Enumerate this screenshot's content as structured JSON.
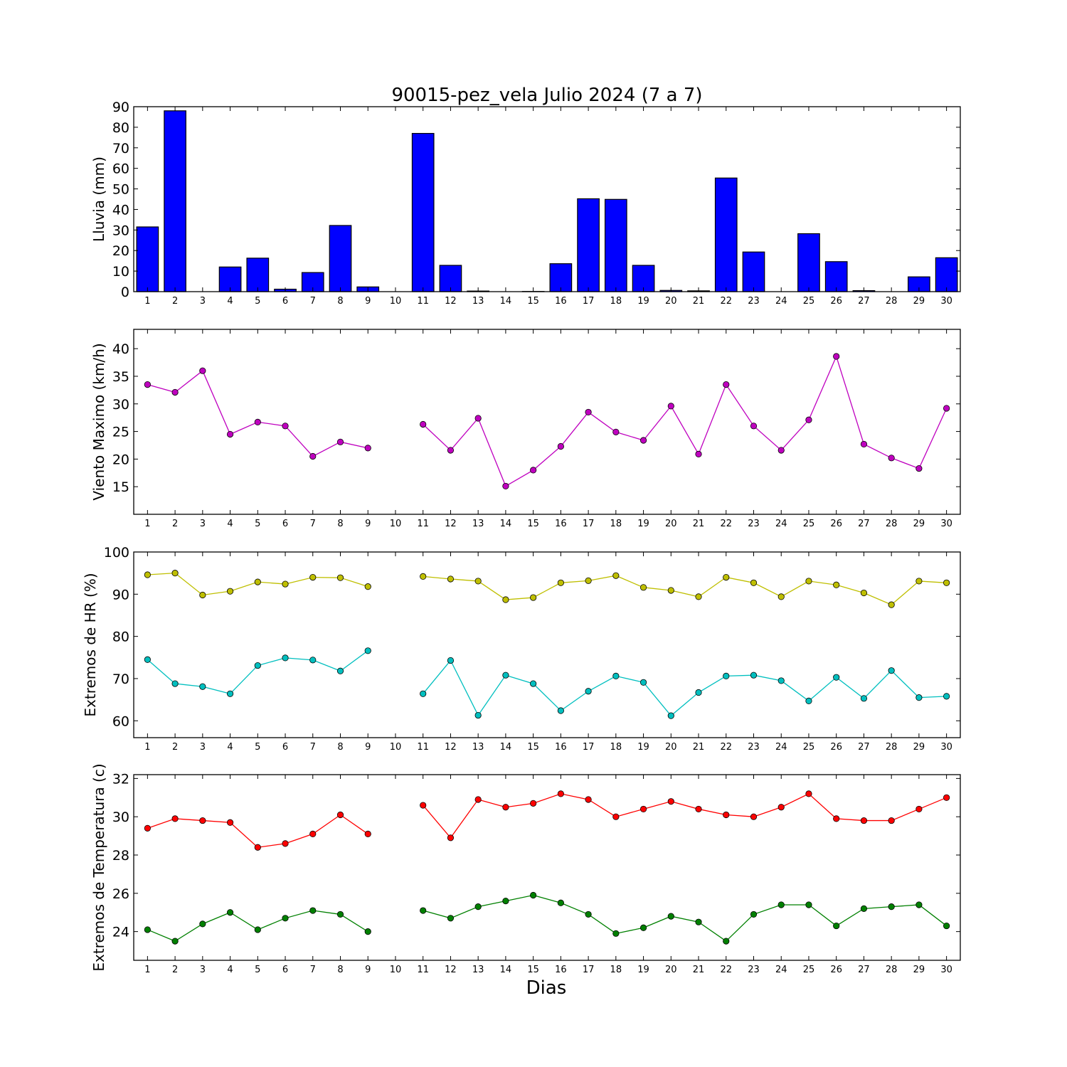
{
  "title": "90015-pez_vela Julio 2024  (7 a 7)",
  "xlabel": "Dias",
  "chart_data": [
    {
      "type": "bar",
      "name": "lluvia",
      "ylabel": "Lluvia (mm)",
      "x": [
        1,
        2,
        3,
        4,
        5,
        6,
        7,
        8,
        9,
        10,
        11,
        12,
        13,
        14,
        15,
        16,
        17,
        18,
        19,
        20,
        21,
        22,
        23,
        24,
        25,
        26,
        27,
        28,
        29,
        30
      ],
      "values": [
        31.5,
        88,
        0,
        12,
        16.3,
        1.2,
        9.3,
        32.2,
        2.3,
        null,
        77,
        12.8,
        0.3,
        0,
        0.1,
        13.6,
        45.2,
        44.9,
        12.8,
        0.6,
        0.4,
        55.3,
        19.3,
        0,
        28.2,
        14.6,
        0.5,
        0,
        7.2,
        16.5
      ],
      "ylim": [
        0,
        90
      ],
      "yticks": [
        0,
        10,
        20,
        30,
        40,
        50,
        60,
        70,
        80,
        90
      ],
      "color": "#0000ff"
    },
    {
      "type": "line",
      "name": "viento",
      "ylabel": "Viento Maximo (km/h)",
      "x": [
        1,
        2,
        3,
        4,
        5,
        6,
        7,
        8,
        9,
        10,
        11,
        12,
        13,
        14,
        15,
        16,
        17,
        18,
        19,
        20,
        21,
        22,
        23,
        24,
        25,
        26,
        27,
        28,
        29,
        30
      ],
      "series": [
        {
          "color": "#bf00bf",
          "values": [
            33.5,
            32.1,
            36,
            24.5,
            26.7,
            26,
            20.5,
            23.1,
            22,
            null,
            26.3,
            21.6,
            27.4,
            15.1,
            18,
            22.3,
            28.5,
            24.9,
            23.4,
            29.6,
            20.9,
            33.5,
            26,
            21.6,
            27.1,
            38.6,
            22.7,
            20.2,
            18.3,
            29.2
          ]
        }
      ],
      "ylim": [
        10,
        43.5
      ],
      "yticks": [
        15,
        20,
        25,
        30,
        35,
        40
      ]
    },
    {
      "type": "line",
      "name": "humedad",
      "ylabel": "Extremos de HR (%)",
      "x": [
        1,
        2,
        3,
        4,
        5,
        6,
        7,
        8,
        9,
        10,
        11,
        12,
        13,
        14,
        15,
        16,
        17,
        18,
        19,
        20,
        21,
        22,
        23,
        24,
        25,
        26,
        27,
        28,
        29,
        30
      ],
      "series": [
        {
          "color": "#bfbf00",
          "values": [
            94.6,
            95,
            89.8,
            90.7,
            92.9,
            92.4,
            94,
            93.9,
            91.8,
            null,
            94.2,
            93.6,
            93.1,
            88.7,
            89.2,
            92.7,
            93.2,
            94.4,
            91.6,
            90.9,
            89.4,
            94,
            92.7,
            89.4,
            93.1,
            92.2,
            90.3,
            87.5,
            93.1,
            92.7
          ]
        },
        {
          "color": "#00bfbf",
          "values": [
            74.5,
            68.8,
            68.1,
            66.4,
            73.1,
            74.9,
            74.4,
            71.8,
            76.6,
            null,
            66.4,
            74.3,
            61.3,
            70.8,
            68.8,
            62.4,
            67,
            70.6,
            69.1,
            61.2,
            66.7,
            70.6,
            70.8,
            69.5,
            64.7,
            70.3,
            65.3,
            71.9,
            65.5,
            65.8
          ]
        }
      ],
      "ylim": [
        56,
        100
      ],
      "yticks": [
        60,
        70,
        80,
        90,
        100
      ]
    },
    {
      "type": "line",
      "name": "temperatura",
      "ylabel": "Extremos de Temperatura (c)",
      "x": [
        1,
        2,
        3,
        4,
        5,
        6,
        7,
        8,
        9,
        10,
        11,
        12,
        13,
        14,
        15,
        16,
        17,
        18,
        19,
        20,
        21,
        22,
        23,
        24,
        25,
        26,
        27,
        28,
        29,
        30
      ],
      "series": [
        {
          "color": "#ff0000",
          "values": [
            29.4,
            29.9,
            29.8,
            29.7,
            28.4,
            28.6,
            29.1,
            30.1,
            29.1,
            null,
            30.6,
            28.9,
            30.9,
            30.5,
            30.7,
            31.2,
            30.9,
            30,
            30.4,
            30.8,
            30.4,
            30.1,
            30,
            30.5,
            31.2,
            29.9,
            29.8,
            29.8,
            30.4,
            31
          ]
        },
        {
          "color": "#008000",
          "values": [
            24.1,
            23.5,
            24.4,
            25,
            24.1,
            24.7,
            25.1,
            24.9,
            24,
            null,
            25.1,
            24.7,
            25.3,
            25.6,
            25.9,
            25.5,
            24.9,
            23.9,
            24.2,
            24.8,
            24.5,
            23.5,
            24.9,
            25.4,
            25.4,
            24.3,
            25.2,
            25.3,
            25.4,
            24.3
          ]
        }
      ],
      "ylim": [
        22.5,
        32.2
      ],
      "yticks": [
        24,
        26,
        28,
        30,
        32
      ]
    }
  ]
}
